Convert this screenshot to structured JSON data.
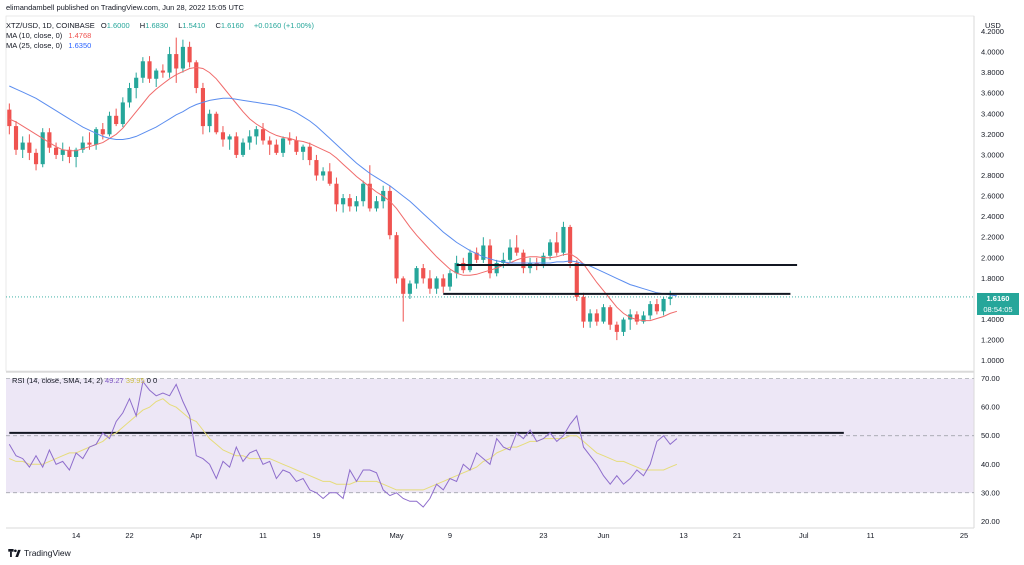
{
  "header": {
    "published": "elimandambell published on TradingView.com, Jun 28, 2022 15:05 UTC",
    "symbol": "XTZ/USD, 1D, COINBASE",
    "ohlc": [
      {
        "k": "O",
        "v": "1.6000"
      },
      {
        "k": "H",
        "v": "1.6830"
      },
      {
        "k": "L",
        "v": "1.5410"
      },
      {
        "k": "C",
        "v": "1.6160"
      }
    ],
    "change": "+0.0160 (+1.00%)",
    "ma10_label": "MA (10, close, 0)",
    "ma10_value": "1.4768",
    "ma25_label": "MA (25, close, 0)",
    "ma25_value": "1.6350"
  },
  "price_axis": {
    "unit": "USD",
    "last_price": "1.6160",
    "countdown": "08:54:05"
  },
  "rsi_panel": {
    "label": "RSI (14, close, SMA, 14, 2)",
    "rsi_value": "49.27",
    "sma_value": "39.95",
    "extra": "0  0"
  },
  "footer": {
    "brand": "TradingView"
  },
  "colors": {
    "up": "#26a69a",
    "down": "#ef5350",
    "ma10": "#f06b6b",
    "ma25": "#5b8def",
    "rsi": "#8e6dcc",
    "rsi_sma": "#e6dc7a",
    "rsi_band": "#ede7f6",
    "level": "#131722"
  },
  "chart_data": [
    {
      "type": "candlestick",
      "title": "XTZ/USD, 1D, COINBASE",
      "ylabel": "USD",
      "ylim": [
        0.9,
        4.35
      ],
      "y_ticks": [
        1.0,
        1.2,
        1.4,
        1.6,
        1.8,
        2.0,
        2.2,
        2.4,
        2.6,
        2.8,
        3.0,
        3.2,
        3.4,
        3.6,
        3.8,
        4.0,
        4.2
      ],
      "x_start": "2022-03-04",
      "x_ticks": [
        {
          "date": "2022-03-14",
          "label": "14"
        },
        {
          "date": "2022-03-22",
          "label": "22"
        },
        {
          "date": "2022-04-01",
          "label": "Apr"
        },
        {
          "date": "2022-04-11",
          "label": "11"
        },
        {
          "date": "2022-04-19",
          "label": "19"
        },
        {
          "date": "2022-05-01",
          "label": "May"
        },
        {
          "date": "2022-05-09",
          "label": "9"
        },
        {
          "date": "2022-05-23",
          "label": "23"
        },
        {
          "date": "2022-06-01",
          "label": "Jun"
        },
        {
          "date": "2022-06-13",
          "label": "13"
        },
        {
          "date": "2022-06-21",
          "label": "21"
        },
        {
          "date": "2022-07-01",
          "label": "Jul"
        },
        {
          "date": "2022-07-11",
          "label": "11"
        },
        {
          "date": "2022-07-25",
          "label": "25"
        }
      ],
      "xlim": [
        "2022-03-04",
        "2022-07-26"
      ],
      "candles": [
        [
          3.44,
          3.5,
          3.2,
          3.28
        ],
        [
          3.28,
          3.33,
          3.0,
          3.05
        ],
        [
          3.05,
          3.18,
          2.97,
          3.12
        ],
        [
          3.12,
          3.2,
          2.95,
          3.02
        ],
        [
          3.02,
          3.06,
          2.85,
          2.91
        ],
        [
          2.91,
          3.26,
          2.88,
          3.22
        ],
        [
          3.22,
          3.26,
          3.02,
          3.07
        ],
        [
          3.07,
          3.12,
          2.96,
          3.0
        ],
        [
          3.0,
          3.12,
          2.94,
          3.05
        ],
        [
          3.05,
          3.08,
          2.92,
          2.98
        ],
        [
          2.98,
          3.07,
          2.88,
          3.05
        ],
        [
          3.05,
          3.18,
          3.02,
          3.12
        ],
        [
          3.12,
          3.22,
          3.05,
          3.1
        ],
        [
          3.1,
          3.27,
          3.05,
          3.25
        ],
        [
          3.25,
          3.31,
          3.15,
          3.2
        ],
        [
          3.2,
          3.42,
          3.18,
          3.38
        ],
        [
          3.38,
          3.45,
          3.28,
          3.3
        ],
        [
          3.3,
          3.56,
          3.27,
          3.51
        ],
        [
          3.51,
          3.7,
          3.46,
          3.65
        ],
        [
          3.65,
          3.8,
          3.55,
          3.75
        ],
        [
          3.75,
          3.95,
          3.7,
          3.91
        ],
        [
          3.91,
          3.96,
          3.7,
          3.74
        ],
        [
          3.74,
          3.84,
          3.66,
          3.82
        ],
        [
          3.82,
          3.88,
          3.75,
          3.8
        ],
        [
          3.8,
          4.05,
          3.75,
          3.98
        ],
        [
          3.98,
          4.14,
          3.7,
          3.84
        ],
        [
          3.84,
          4.12,
          3.8,
          4.05
        ],
        [
          4.05,
          4.1,
          3.85,
          3.9
        ],
        [
          3.9,
          3.92,
          3.6,
          3.65
        ],
        [
          3.65,
          3.7,
          3.2,
          3.28
        ],
        [
          3.28,
          3.44,
          3.22,
          3.4
        ],
        [
          3.4,
          3.42,
          3.2,
          3.22
        ],
        [
          3.22,
          3.28,
          3.08,
          3.15
        ],
        [
          3.15,
          3.2,
          3.05,
          3.18
        ],
        [
          3.18,
          3.22,
          2.97,
          3.0
        ],
        [
          3.0,
          3.16,
          2.98,
          3.12
        ],
        [
          3.12,
          3.24,
          3.05,
          3.18
        ],
        [
          3.18,
          3.28,
          3.1,
          3.25
        ],
        [
          3.25,
          3.31,
          3.1,
          3.14
        ],
        [
          3.14,
          3.18,
          3.0,
          3.1
        ],
        [
          3.1,
          3.15,
          3.0,
          3.02
        ],
        [
          3.02,
          3.18,
          2.98,
          3.16
        ],
        [
          3.16,
          3.22,
          3.1,
          3.14
        ],
        [
          3.14,
          3.18,
          3.0,
          3.03
        ],
        [
          3.03,
          3.1,
          2.95,
          3.08
        ],
        [
          3.08,
          3.12,
          2.9,
          2.95
        ],
        [
          2.95,
          3.0,
          2.75,
          2.8
        ],
        [
          2.8,
          2.88,
          2.75,
          2.84
        ],
        [
          2.84,
          2.92,
          2.7,
          2.72
        ],
        [
          2.72,
          2.78,
          2.45,
          2.52
        ],
        [
          2.52,
          2.62,
          2.44,
          2.58
        ],
        [
          2.58,
          2.62,
          2.45,
          2.5
        ],
        [
          2.5,
          2.6,
          2.45,
          2.55
        ],
        [
          2.55,
          2.75,
          2.5,
          2.72
        ],
        [
          2.72,
          2.9,
          2.45,
          2.48
        ],
        [
          2.48,
          2.6,
          2.45,
          2.55
        ],
        [
          2.55,
          2.7,
          2.48,
          2.65
        ],
        [
          2.65,
          2.7,
          2.18,
          2.22
        ],
        [
          2.22,
          2.25,
          1.75,
          1.8
        ],
        [
          1.8,
          1.82,
          1.38,
          1.65
        ],
        [
          1.65,
          1.78,
          1.6,
          1.75
        ],
        [
          1.75,
          1.92,
          1.7,
          1.9
        ],
        [
          1.9,
          1.94,
          1.75,
          1.8
        ],
        [
          1.8,
          1.88,
          1.65,
          1.7
        ],
        [
          1.7,
          1.82,
          1.65,
          1.8
        ],
        [
          1.8,
          1.84,
          1.66,
          1.72
        ],
        [
          1.72,
          1.88,
          1.68,
          1.85
        ],
        [
          1.85,
          2.02,
          1.8,
          1.95
        ],
        [
          1.95,
          2.0,
          1.85,
          1.88
        ],
        [
          1.88,
          2.08,
          1.86,
          2.05
        ],
        [
          2.05,
          2.1,
          1.95,
          1.98
        ],
        [
          1.98,
          2.2,
          1.95,
          2.12
        ],
        [
          2.12,
          2.18,
          1.8,
          1.85
        ],
        [
          1.85,
          1.98,
          1.82,
          1.95
        ],
        [
          1.95,
          2.05,
          1.9,
          1.98
        ],
        [
          1.98,
          2.18,
          1.95,
          2.1
        ],
        [
          2.1,
          2.22,
          2.02,
          2.05
        ],
        [
          2.05,
          2.08,
          1.85,
          1.9
        ],
        [
          1.9,
          2.0,
          1.85,
          1.95
        ],
        [
          1.95,
          2.0,
          1.88,
          1.92
        ],
        [
          1.92,
          2.05,
          1.9,
          2.02
        ],
        [
          2.02,
          2.18,
          1.98,
          2.15
        ],
        [
          2.15,
          2.25,
          2.02,
          2.05
        ],
        [
          2.05,
          2.35,
          2.02,
          2.3
        ],
        [
          2.3,
          2.32,
          1.9,
          1.95
        ],
        [
          1.95,
          1.98,
          1.58,
          1.62
        ],
        [
          1.62,
          1.66,
          1.32,
          1.38
        ],
        [
          1.38,
          1.5,
          1.32,
          1.46
        ],
        [
          1.46,
          1.5,
          1.34,
          1.38
        ],
        [
          1.38,
          1.55,
          1.36,
          1.52
        ],
        [
          1.52,
          1.54,
          1.3,
          1.35
        ],
        [
          1.35,
          1.38,
          1.2,
          1.28
        ],
        [
          1.28,
          1.42,
          1.24,
          1.4
        ],
        [
          1.4,
          1.5,
          1.3,
          1.45
        ],
        [
          1.45,
          1.48,
          1.35,
          1.38
        ],
        [
          1.38,
          1.48,
          1.36,
          1.44
        ],
        [
          1.44,
          1.58,
          1.4,
          1.55
        ],
        [
          1.55,
          1.6,
          1.45,
          1.48
        ],
        [
          1.48,
          1.62,
          1.44,
          1.6
        ],
        [
          1.6,
          1.68,
          1.54,
          1.62
        ]
      ],
      "series": [
        {
          "name": "MA (10, close, 0)",
          "values": [
            3.35,
            3.32,
            3.28,
            3.24,
            3.2,
            3.16,
            3.12,
            3.08,
            3.05,
            3.04,
            3.04,
            3.06,
            3.08,
            3.1,
            3.12,
            3.16,
            3.2,
            3.26,
            3.34,
            3.42,
            3.5,
            3.58,
            3.64,
            3.69,
            3.74,
            3.78,
            3.81,
            3.84,
            3.85,
            3.84,
            3.8,
            3.74,
            3.66,
            3.58,
            3.5,
            3.42,
            3.35,
            3.3,
            3.26,
            3.22,
            3.19,
            3.17,
            3.16,
            3.14,
            3.13,
            3.11,
            3.08,
            3.05,
            3.02,
            2.97,
            2.91,
            2.85,
            2.79,
            2.74,
            2.69,
            2.64,
            2.6,
            2.55,
            2.48,
            2.39,
            2.3,
            2.22,
            2.15,
            2.08,
            2.01,
            1.95,
            1.89,
            1.85,
            1.83,
            1.83,
            1.84,
            1.86,
            1.88,
            1.9,
            1.93,
            1.95,
            1.98,
            2.0,
            2.01,
            2.01,
            2.0,
            2.0,
            2.01,
            2.03,
            2.04,
            2.0,
            1.94,
            1.85,
            1.76,
            1.68,
            1.6,
            1.52,
            1.46,
            1.42,
            1.4,
            1.39,
            1.39,
            1.41,
            1.43,
            1.46,
            1.48
          ]
        },
        {
          "name": "MA (25, close, 0)",
          "values": [
            3.67,
            3.64,
            3.61,
            3.58,
            3.55,
            3.51,
            3.47,
            3.43,
            3.39,
            3.35,
            3.31,
            3.27,
            3.24,
            3.21,
            3.18,
            3.16,
            3.15,
            3.15,
            3.16,
            3.18,
            3.21,
            3.24,
            3.27,
            3.31,
            3.35,
            3.39,
            3.42,
            3.46,
            3.49,
            3.51,
            3.53,
            3.54,
            3.55,
            3.55,
            3.54,
            3.53,
            3.52,
            3.51,
            3.5,
            3.49,
            3.48,
            3.46,
            3.44,
            3.41,
            3.37,
            3.33,
            3.28,
            3.22,
            3.16,
            3.1,
            3.04,
            2.98,
            2.92,
            2.87,
            2.82,
            2.78,
            2.74,
            2.7,
            2.65,
            2.6,
            2.55,
            2.49,
            2.43,
            2.37,
            2.31,
            2.25,
            2.2,
            2.15,
            2.11,
            2.07,
            2.04,
            2.01,
            1.99,
            1.97,
            1.96,
            1.95,
            1.95,
            1.95,
            1.95,
            1.95,
            1.95,
            1.95,
            1.96,
            1.96,
            1.97,
            1.96,
            1.94,
            1.92,
            1.89,
            1.86,
            1.83,
            1.8,
            1.77,
            1.74,
            1.72,
            1.7,
            1.68,
            1.66,
            1.65,
            1.64,
            1.63
          ]
        }
      ],
      "levels": [
        {
          "value": 1.93,
          "from": "2022-05-10",
          "to": "2022-06-30"
        },
        {
          "value": 1.65,
          "from": "2022-05-08",
          "to": "2022-06-29"
        }
      ]
    },
    {
      "type": "line",
      "title": "RSI (14, close, SMA, 14, 2)",
      "ylim": [
        18,
        72
      ],
      "y_ticks": [
        20,
        30,
        40,
        50,
        60,
        70
      ],
      "band": [
        30,
        70
      ],
      "midline": 50,
      "series": [
        {
          "name": "RSI",
          "values": [
            47,
            43,
            42,
            39,
            43,
            39,
            45,
            40,
            41,
            38,
            44,
            42,
            46,
            47,
            51,
            49,
            55,
            58,
            63,
            57,
            69,
            66,
            64,
            65,
            64,
            68,
            62,
            57,
            43,
            42,
            40,
            35,
            41,
            39,
            46,
            41,
            44,
            45,
            40,
            41,
            35,
            38,
            37,
            34,
            35,
            31,
            30,
            28,
            30,
            30,
            28,
            38,
            34,
            38,
            38,
            37,
            31,
            29,
            30,
            28,
            27,
            27,
            25,
            28,
            33,
            31,
            35,
            34,
            40,
            38,
            44,
            42,
            40,
            49,
            46,
            45,
            51,
            49,
            52,
            48,
            49,
            51,
            48,
            50,
            54,
            57,
            46,
            43,
            40,
            36,
            33,
            36,
            33,
            35,
            38,
            36,
            40,
            48,
            50,
            47,
            49
          ]
        },
        {
          "name": "SMA",
          "values": [
            42,
            41,
            41,
            40,
            40,
            40,
            41,
            42,
            43,
            44,
            44,
            45,
            46,
            47,
            48,
            50,
            51,
            53,
            55,
            57,
            59,
            60,
            62,
            63,
            61,
            60,
            58,
            56,
            55,
            52,
            49,
            47,
            45,
            44,
            43,
            43,
            42,
            42,
            42,
            42,
            41,
            40,
            39,
            38,
            37,
            36,
            35,
            34,
            34,
            33,
            33,
            33,
            34,
            34,
            34,
            34,
            33,
            32,
            31,
            31,
            31,
            31,
            31,
            32,
            33,
            34,
            35,
            36,
            37,
            38,
            39,
            41,
            42,
            44,
            45,
            46,
            46,
            47,
            48,
            48,
            49,
            49,
            49,
            49,
            50,
            50,
            48,
            46,
            44,
            43,
            42,
            41,
            41,
            40,
            39,
            38,
            38,
            38,
            38,
            39,
            40
          ]
        }
      ],
      "levels": [
        {
          "value": 51,
          "from": "2022-03-04",
          "to": "2022-07-07"
        }
      ]
    }
  ]
}
